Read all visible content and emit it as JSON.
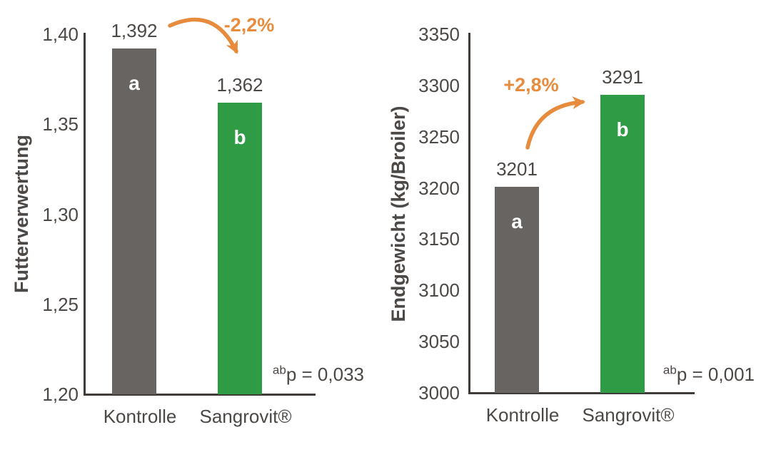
{
  "figure": {
    "background": "#FFFFFF",
    "text_color": "#4C4846",
    "bar_gray": "#686462",
    "bar_green": "#2F9B45",
    "arrow_orange": "#E78C3C"
  },
  "chart_data": [
    {
      "type": "bar",
      "title": "",
      "ylabel": "Futterverwertung",
      "xlabel": "",
      "categories": [
        "Kontrolle",
        "Sangrovit®"
      ],
      "values": [
        1.392,
        1.362
      ],
      "value_labels": [
        "1,392",
        "1,362"
      ],
      "bar_letters": [
        "a",
        "b"
      ],
      "bar_colors": [
        "#686462",
        "#2F9B45"
      ],
      "ylim": [
        1.2,
        1.4
      ],
      "yticks": [
        "1,40",
        "1,35",
        "1,30",
        "1,25",
        "1,20"
      ],
      "grid": false,
      "legend": "none",
      "annotation": {
        "text": "-2,2%",
        "color": "#E78C3C",
        "direction": "down"
      },
      "p_value": {
        "sup": "ab",
        "text": "p = 0,033"
      }
    },
    {
      "type": "bar",
      "title": "",
      "ylabel": "Endgewicht (kg/Broiler)",
      "xlabel": "",
      "categories": [
        "Kontrolle",
        "Sangrovit®"
      ],
      "values": [
        3201,
        3291
      ],
      "value_labels": [
        "3201",
        "3291"
      ],
      "bar_letters": [
        "a",
        "b"
      ],
      "bar_colors": [
        "#686462",
        "#2F9B45"
      ],
      "ylim": [
        3000,
        3350
      ],
      "yticks": [
        "3350",
        "3300",
        "3250",
        "3200",
        "3150",
        "3100",
        "3050",
        "3000"
      ],
      "grid": false,
      "legend": "none",
      "annotation": {
        "text": "+2,8%",
        "color": "#E78C3C",
        "direction": "up"
      },
      "p_value": {
        "sup": "ab",
        "text": "p = 0,001"
      }
    }
  ]
}
